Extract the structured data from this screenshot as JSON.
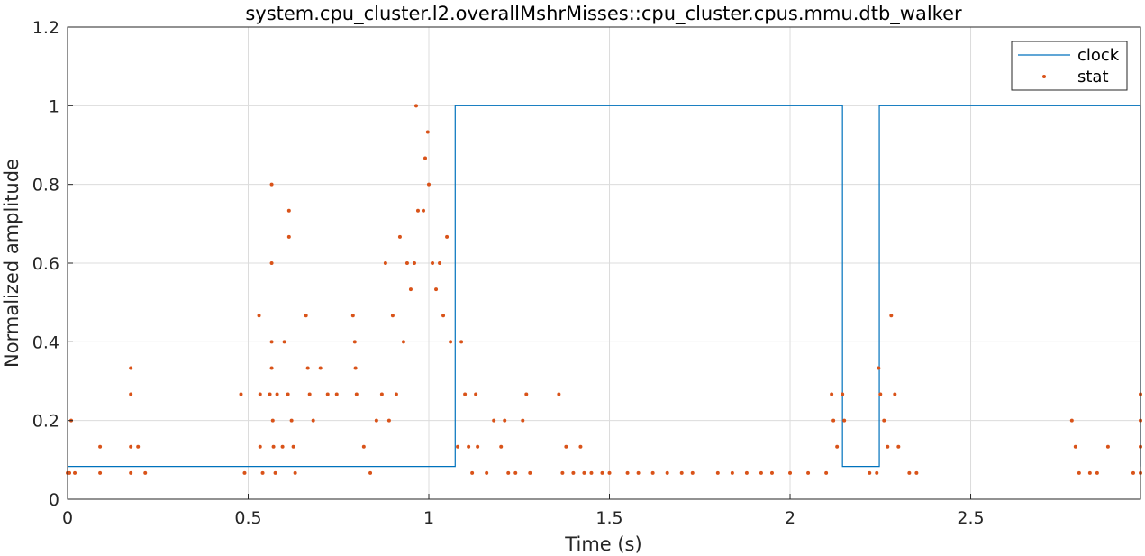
{
  "chart_data": {
    "type": "line",
    "title": "system.cpu_cluster.l2.overallMshrMisses::cpu_cluster.cpus.mmu.dtb_walker",
    "xlabel": "Time (s)",
    "ylabel": "Normalized amplitude",
    "xlim": [
      0,
      2.97
    ],
    "ylim": [
      0,
      1.2
    ],
    "xticks": [
      0,
      0.5,
      1,
      1.5,
      2,
      2.5
    ],
    "xtick_labels": [
      "0",
      "0.5",
      "1",
      "1.5",
      "2",
      "2.5"
    ],
    "yticks": [
      0,
      0.2,
      0.4,
      0.6,
      0.8,
      1,
      1.2
    ],
    "ytick_labels": [
      "0",
      "0.2",
      "0.4",
      "0.6",
      "0.8",
      "1",
      "1.2"
    ],
    "grid": true,
    "legend_position": "top-right",
    "colors": {
      "clock": "#0072bd",
      "stat": "#d95319"
    },
    "series": [
      {
        "name": "clock",
        "style": "line",
        "x": [
          0,
          1.073,
          1.073,
          2.145,
          2.145,
          2.247,
          2.247,
          2.97,
          2.97
        ],
        "y": [
          0.0833,
          0.0833,
          1,
          1,
          0.0833,
          0.0833,
          1,
          1,
          0.0833
        ]
      },
      {
        "name": "stat",
        "style": "markers",
        "x": [
          0.0,
          0.01,
          0.02,
          0.005,
          0.09,
          0.09,
          0.175,
          0.175,
          0.175,
          0.175,
          0.195,
          0.215,
          0.48,
          0.49,
          0.53,
          0.533,
          0.533,
          0.54,
          0.56,
          0.565,
          0.565,
          0.565,
          0.565,
          0.568,
          0.57,
          0.575,
          0.58,
          0.595,
          0.6,
          0.61,
          0.613,
          0.613,
          0.62,
          0.625,
          0.63,
          0.66,
          0.665,
          0.67,
          0.68,
          0.7,
          0.72,
          0.745,
          0.79,
          0.795,
          0.797,
          0.8,
          0.82,
          0.838,
          0.855,
          0.87,
          0.88,
          0.89,
          0.9,
          0.91,
          0.92,
          0.93,
          0.94,
          0.95,
          0.96,
          0.965,
          0.97,
          0.985,
          0.99,
          0.997,
          1.0,
          1.01,
          1.02,
          1.03,
          1.04,
          1.05,
          1.06,
          1.08,
          1.09,
          1.1,
          1.11,
          1.12,
          1.13,
          1.135,
          1.16,
          1.18,
          1.2,
          1.21,
          1.22,
          1.24,
          1.26,
          1.27,
          1.28,
          1.36,
          1.37,
          1.38,
          1.4,
          1.42,
          1.43,
          1.45,
          1.48,
          1.5,
          1.55,
          1.58,
          1.62,
          1.66,
          1.7,
          1.73,
          1.8,
          1.84,
          1.88,
          1.92,
          1.95,
          2.0,
          2.05,
          2.1,
          2.115,
          2.12,
          2.13,
          2.145,
          2.15,
          2.22,
          2.24,
          2.245,
          2.25,
          2.26,
          2.27,
          2.28,
          2.29,
          2.3,
          2.33,
          2.35,
          2.78,
          2.79,
          2.8,
          2.83,
          2.85,
          2.88,
          2.95,
          2.97,
          2.97,
          2.97,
          2.97
        ],
        "y": [
          0.0667,
          0.2,
          0.0667,
          0.0667,
          0.1333,
          0.0667,
          0.3333,
          0.2667,
          0.1333,
          0.0667,
          0.1333,
          0.0667,
          0.2667,
          0.0667,
          0.4667,
          0.1333,
          0.2667,
          0.0667,
          0.2667,
          0.8,
          0.6,
          0.4,
          0.3333,
          0.2,
          0.1333,
          0.0667,
          0.2667,
          0.1333,
          0.4,
          0.2667,
          0.7333,
          0.6667,
          0.2,
          0.1333,
          0.0667,
          0.4667,
          0.3333,
          0.2667,
          0.2,
          0.3333,
          0.2667,
          0.2667,
          0.4667,
          0.4,
          0.3333,
          0.2667,
          0.1333,
          0.0667,
          0.2,
          0.2667,
          0.6,
          0.2,
          0.4667,
          0.2667,
          0.6667,
          0.4,
          0.6,
          0.5333,
          0.6,
          1.0,
          0.7333,
          0.7333,
          0.8667,
          0.9333,
          0.8,
          0.6,
          0.5333,
          0.6,
          0.4667,
          0.6667,
          0.4,
          0.1333,
          0.4,
          0.2667,
          0.1333,
          0.0667,
          0.2667,
          0.1333,
          0.0667,
          0.2,
          0.1333,
          0.2,
          0.0667,
          0.0667,
          0.2,
          0.2667,
          0.0667,
          0.2667,
          0.0667,
          0.1333,
          0.0667,
          0.1333,
          0.0667,
          0.0667,
          0.0667,
          0.0667,
          0.0667,
          0.0667,
          0.0667,
          0.0667,
          0.0667,
          0.0667,
          0.0667,
          0.0667,
          0.0667,
          0.0667,
          0.0667,
          0.0667,
          0.0667,
          0.0667,
          0.2667,
          0.2,
          0.1333,
          0.2667,
          0.2,
          0.0667,
          0.0667,
          0.3333,
          0.2667,
          0.2,
          0.1333,
          0.4667,
          0.2667,
          0.1333,
          0.0667,
          0.0667,
          0.2,
          0.1333,
          0.0667,
          0.0667,
          0.0667,
          0.1333,
          0.0667,
          0.2667,
          0.2,
          0.1333,
          0.0667
        ]
      }
    ]
  }
}
